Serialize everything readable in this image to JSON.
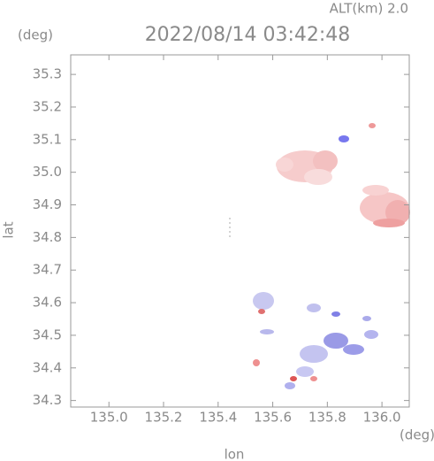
{
  "chart_data": {
    "type": "map",
    "title": "2022/08/14 03:42:48",
    "altitude_label": "ALT(km) 2.0",
    "y_unit": "(deg)",
    "x_unit": "(deg)",
    "xlabel": "lon",
    "ylabel": "lat",
    "xlim": [
      134.86,
      136.1
    ],
    "ylim": [
      34.28,
      35.36
    ],
    "xticks": [
      {
        "value": 135,
        "label": "135.0"
      },
      135.2,
      135.4,
      135.6,
      135.8,
      {
        "value": 136,
        "label": "136.0"
      }
    ],
    "yticks": [
      34.3,
      34.4,
      34.5,
      34.6,
      34.7,
      34.8,
      34.9,
      {
        "value": 35,
        "label": "35.0"
      },
      35.1,
      35.2,
      35.3
    ]
  }
}
